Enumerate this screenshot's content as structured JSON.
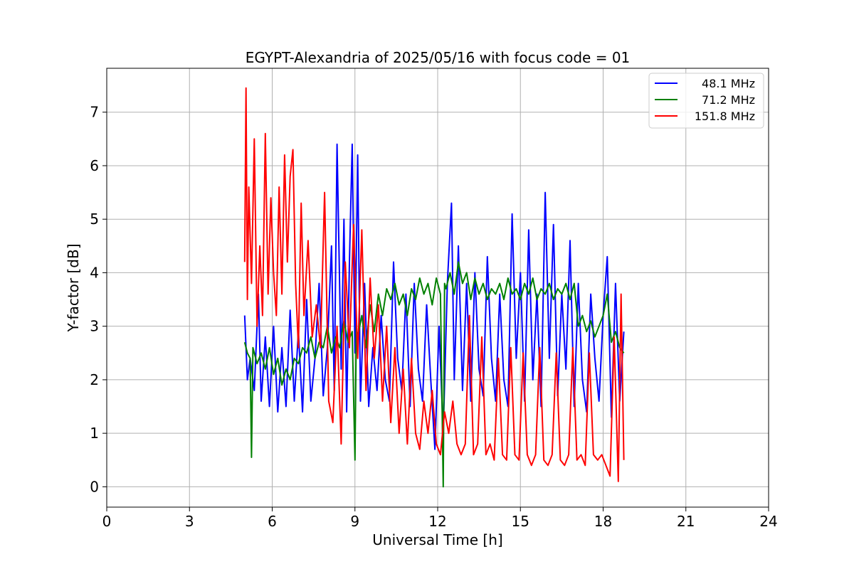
{
  "chart_data": {
    "type": "line",
    "title": "EGYPT-Alexandria of 2025/05/16 with focus code = 01",
    "xlabel": "Universal Time [h]",
    "ylabel": "Y-factor [dB]",
    "xlim": [
      0,
      24
    ],
    "ylim": [
      -0.38,
      7.82
    ],
    "xticks": [
      0,
      3,
      6,
      9,
      12,
      15,
      18,
      21,
      24
    ],
    "yticks": [
      0,
      1,
      2,
      3,
      4,
      5,
      6,
      7
    ],
    "grid": true,
    "legend_position": "top-right",
    "series": [
      {
        "name": "48.1 MHz",
        "color": "#0000ff",
        "x": [
          5.0,
          5.1,
          5.2,
          5.35,
          5.5,
          5.6,
          5.75,
          5.9,
          6.05,
          6.2,
          6.35,
          6.5,
          6.65,
          6.8,
          6.95,
          7.1,
          7.25,
          7.4,
          7.55,
          7.7,
          7.85,
          8.0,
          8.15,
          8.25,
          8.35,
          8.5,
          8.6,
          8.7,
          8.8,
          8.9,
          9.0,
          9.1,
          9.2,
          9.35,
          9.5,
          9.65,
          9.8,
          9.95,
          10.1,
          10.25,
          10.4,
          10.55,
          10.7,
          10.85,
          11.0,
          11.15,
          11.3,
          11.45,
          11.6,
          11.75,
          11.9,
          12.05,
          12.2,
          12.35,
          12.5,
          12.6,
          12.75,
          12.9,
          13.05,
          13.2,
          13.35,
          13.5,
          13.65,
          13.8,
          13.95,
          14.1,
          14.25,
          14.4,
          14.55,
          14.7,
          14.85,
          15.0,
          15.15,
          15.3,
          15.45,
          15.6,
          15.75,
          15.9,
          16.05,
          16.2,
          16.35,
          16.5,
          16.65,
          16.8,
          16.95,
          17.1,
          17.25,
          17.4,
          17.55,
          17.7,
          17.85,
          18.0,
          18.15,
          18.3,
          18.45,
          18.6,
          18.75
        ],
        "values": [
          3.2,
          2.0,
          2.4,
          1.8,
          3.6,
          1.6,
          2.8,
          1.5,
          3.0,
          1.4,
          2.6,
          1.5,
          3.3,
          1.6,
          2.9,
          1.4,
          3.5,
          1.6,
          2.4,
          3.8,
          1.7,
          2.6,
          4.5,
          1.8,
          6.4,
          2.2,
          5.0,
          1.4,
          4.2,
          6.4,
          2.5,
          6.2,
          1.6,
          3.8,
          1.5,
          2.6,
          1.8,
          3.2,
          2.0,
          1.6,
          4.2,
          2.4,
          1.8,
          3.6,
          1.5,
          3.8,
          2.2,
          1.6,
          3.4,
          2.0,
          0.7,
          3.0,
          1.0,
          3.8,
          5.3,
          2.0,
          4.5,
          1.8,
          3.8,
          1.6,
          4.0,
          2.2,
          1.7,
          4.3,
          2.4,
          1.6,
          3.6,
          2.0,
          1.5,
          5.1,
          2.4,
          4.0,
          1.6,
          4.8,
          2.0,
          3.6,
          1.5,
          5.5,
          2.4,
          4.9,
          1.7,
          3.6,
          2.2,
          4.6,
          1.5,
          3.8,
          2.0,
          1.4,
          3.6,
          2.4,
          1.6,
          3.2,
          4.3,
          1.3,
          3.8,
          1.6,
          2.9
        ]
      },
      {
        "name": "71.2 MHz",
        "color": "#008000",
        "x": [
          5.0,
          5.1,
          5.2,
          5.25,
          5.3,
          5.45,
          5.6,
          5.75,
          5.9,
          6.05,
          6.2,
          6.35,
          6.5,
          6.65,
          6.8,
          6.95,
          7.1,
          7.25,
          7.4,
          7.55,
          7.7,
          7.85,
          8.0,
          8.15,
          8.3,
          8.45,
          8.6,
          8.75,
          8.9,
          9.0,
          9.05,
          9.1,
          9.25,
          9.4,
          9.55,
          9.7,
          9.85,
          10.0,
          10.15,
          10.3,
          10.45,
          10.6,
          10.75,
          10.9,
          11.05,
          11.2,
          11.35,
          11.5,
          11.65,
          11.8,
          11.95,
          12.1,
          12.2,
          12.25,
          12.3,
          12.45,
          12.6,
          12.75,
          12.9,
          13.05,
          13.2,
          13.35,
          13.5,
          13.65,
          13.8,
          13.95,
          14.1,
          14.25,
          14.4,
          14.55,
          14.7,
          14.85,
          15.0,
          15.15,
          15.3,
          15.45,
          15.6,
          15.75,
          15.9,
          16.05,
          16.2,
          16.35,
          16.5,
          16.65,
          16.8,
          16.95,
          17.1,
          17.25,
          17.4,
          17.55,
          17.7,
          17.85,
          18.0,
          18.15,
          18.3,
          18.45,
          18.6,
          18.75
        ],
        "values": [
          2.7,
          2.5,
          2.4,
          0.55,
          2.6,
          2.3,
          2.5,
          2.2,
          2.6,
          2.1,
          2.4,
          1.9,
          2.2,
          2.0,
          2.4,
          2.3,
          2.6,
          2.5,
          2.8,
          2.4,
          2.7,
          2.6,
          3.0,
          2.5,
          2.8,
          2.6,
          3.1,
          2.7,
          2.9,
          0.5,
          3.0,
          2.8,
          3.2,
          2.6,
          3.4,
          2.9,
          3.6,
          3.2,
          3.7,
          3.5,
          3.8,
          3.4,
          3.6,
          3.2,
          3.7,
          3.5,
          3.9,
          3.6,
          3.8,
          3.4,
          3.9,
          3.6,
          0.0,
          3.8,
          3.7,
          4.0,
          3.6,
          4.2,
          3.8,
          4.0,
          3.5,
          3.9,
          3.6,
          3.8,
          3.5,
          3.7,
          3.6,
          3.8,
          3.5,
          3.9,
          3.6,
          3.7,
          3.5,
          3.8,
          3.6,
          3.9,
          3.5,
          3.7,
          3.6,
          3.8,
          3.5,
          3.7,
          3.6,
          3.8,
          3.5,
          3.8,
          3.0,
          3.2,
          2.9,
          3.1,
          2.8,
          3.0,
          3.2,
          3.6,
          2.7,
          2.9,
          2.6,
          2.5
        ]
      },
      {
        "name": "151.8 MHz",
        "color": "#ff0000",
        "x": [
          5.0,
          5.05,
          5.1,
          5.15,
          5.25,
          5.35,
          5.45,
          5.55,
          5.65,
          5.75,
          5.85,
          5.95,
          6.05,
          6.15,
          6.25,
          6.35,
          6.45,
          6.55,
          6.65,
          6.75,
          6.85,
          6.95,
          7.05,
          7.15,
          7.3,
          7.45,
          7.6,
          7.75,
          7.9,
          8.05,
          8.2,
          8.35,
          8.5,
          8.65,
          8.8,
          8.95,
          9.1,
          9.25,
          9.4,
          9.55,
          9.7,
          9.85,
          10.0,
          10.15,
          10.3,
          10.45,
          10.6,
          10.75,
          10.9,
          11.05,
          11.2,
          11.35,
          11.5,
          11.65,
          11.8,
          11.95,
          12.1,
          12.25,
          12.4,
          12.55,
          12.7,
          12.85,
          13.0,
          13.15,
          13.3,
          13.45,
          13.6,
          13.75,
          13.9,
          14.05,
          14.2,
          14.35,
          14.5,
          14.65,
          14.8,
          14.95,
          15.1,
          15.25,
          15.4,
          15.55,
          15.7,
          15.85,
          16.0,
          16.15,
          16.3,
          16.45,
          16.6,
          16.75,
          16.9,
          17.05,
          17.2,
          17.35,
          17.5,
          17.65,
          17.8,
          17.95,
          18.1,
          18.25,
          18.4,
          18.55,
          18.65,
          18.75
        ],
        "values": [
          4.2,
          7.45,
          3.5,
          5.6,
          3.8,
          6.5,
          3.0,
          4.5,
          3.2,
          6.6,
          3.6,
          5.4,
          4.0,
          3.2,
          5.6,
          3.6,
          6.2,
          4.2,
          5.8,
          6.3,
          3.8,
          2.6,
          5.3,
          3.2,
          4.6,
          2.8,
          3.4,
          2.6,
          5.5,
          1.6,
          1.2,
          3.0,
          0.8,
          4.2,
          2.6,
          4.9,
          2.4,
          4.8,
          1.8,
          3.9,
          2.4,
          3.4,
          1.6,
          3.0,
          1.2,
          2.6,
          1.0,
          2.2,
          0.8,
          2.4,
          1.0,
          0.7,
          1.6,
          1.0,
          1.8,
          0.8,
          0.6,
          1.4,
          1.0,
          1.6,
          0.8,
          0.6,
          0.8,
          3.2,
          0.6,
          0.8,
          2.8,
          0.6,
          0.8,
          0.5,
          2.4,
          0.6,
          0.5,
          2.6,
          0.6,
          0.5,
          2.5,
          0.6,
          0.4,
          0.6,
          2.6,
          0.5,
          0.4,
          0.6,
          2.5,
          0.5,
          0.4,
          0.6,
          2.6,
          0.5,
          0.6,
          0.4,
          2.5,
          0.6,
          0.5,
          0.6,
          0.4,
          0.2,
          2.8,
          0.1,
          3.6,
          0.5
        ]
      }
    ]
  }
}
